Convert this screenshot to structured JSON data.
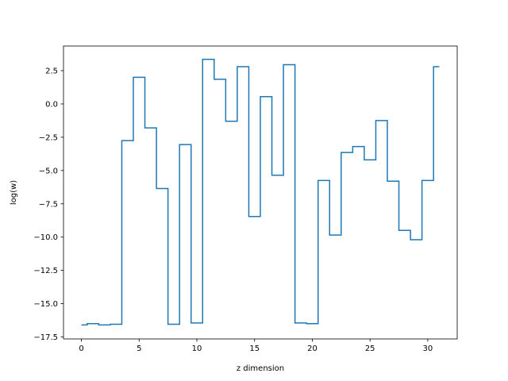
{
  "chart_data": {
    "type": "line",
    "drawstyle": "steps-mid",
    "xlabel": "z dimension",
    "ylabel": "log(w)",
    "xlim": [
      -1.55,
      32.55
    ],
    "ylim": [
      -17.65,
      4.35
    ],
    "xticks": [
      0,
      5,
      10,
      15,
      20,
      25,
      30
    ],
    "xtick_labels": [
      "0",
      "5",
      "10",
      "15",
      "20",
      "25",
      "30"
    ],
    "yticks": [
      2.5,
      0.0,
      -2.5,
      -5.0,
      -7.5,
      -10.0,
      -12.5,
      -15.0,
      -17.5
    ],
    "ytick_labels": [
      "2.5",
      "0.0",
      "−2.5",
      "−5.0",
      "−7.5",
      "−10.0",
      "−12.5",
      "−15.0",
      "−17.5"
    ],
    "grid": false,
    "line_color": "#1f77b4",
    "series": [
      {
        "x": [
          0,
          1,
          2,
          3,
          4,
          5,
          6,
          7,
          8,
          9,
          10,
          11,
          12,
          13,
          14,
          15,
          16,
          17,
          18,
          19,
          20,
          21,
          22,
          23,
          24,
          25,
          26,
          27,
          28,
          29,
          30,
          31
        ],
        "values": [
          -16.6,
          -16.5,
          -16.6,
          -16.55,
          -2.75,
          2.0,
          -1.8,
          -6.35,
          -16.55,
          -3.05,
          -16.45,
          3.35,
          1.85,
          -1.3,
          2.8,
          -8.45,
          0.55,
          -5.35,
          2.95,
          -16.45,
          -16.5,
          -5.75,
          -9.85,
          -3.65,
          -3.2,
          -4.2,
          -1.25,
          -5.8,
          -9.5,
          -10.2,
          -5.75,
          2.8
        ]
      }
    ]
  }
}
